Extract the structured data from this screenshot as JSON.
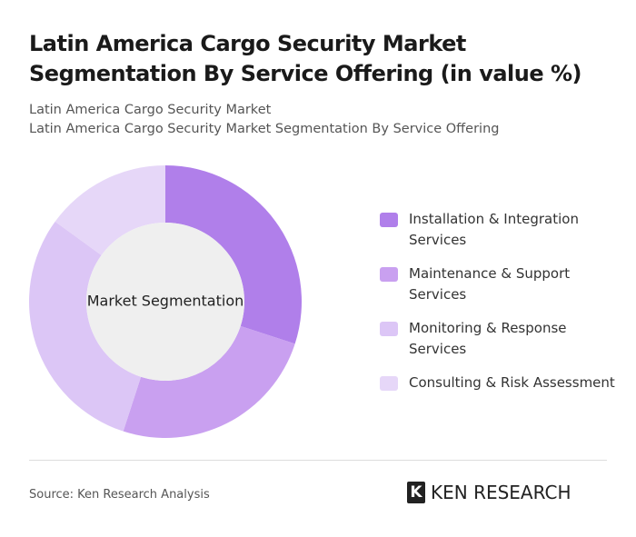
{
  "chart_data": {
    "type": "donut",
    "title": "Latin America Cargo Security Market Segmentation By Service Offering (in value %)",
    "subtitle": [
      "Latin America Cargo Security Market",
      "Latin America Cargo Security Market Segmentation By Service Offering"
    ],
    "center_label": "Market Segmentation",
    "categories": [
      "Installation & Integration Services",
      "Maintenance & Support Services",
      "Monitoring & Response Services",
      "Consulting & Risk Assessment"
    ],
    "values": [
      30,
      25,
      30,
      15
    ],
    "colors": [
      "#b07fea",
      "#c9a0f0",
      "#dcc6f6",
      "#e6d7f8"
    ],
    "source": "Source: Ken Research Analysis",
    "brand": "KEN RESEARCH"
  }
}
